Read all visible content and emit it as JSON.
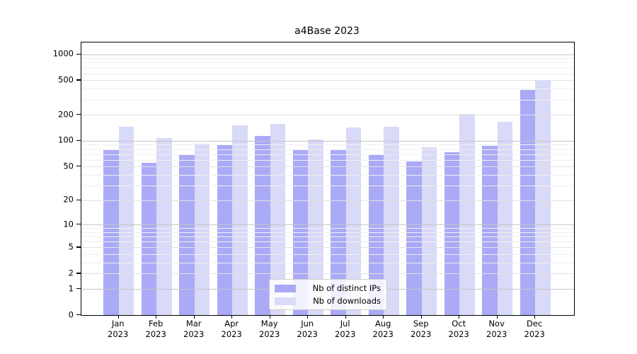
{
  "chart_data": {
    "type": "bar",
    "title": "a4Base 2023",
    "categories": [
      "Jan 2023",
      "Feb 2023",
      "Mar 2023",
      "Apr 2023",
      "May 2023",
      "Jun 2023",
      "Jul 2023",
      "Aug 2023",
      "Sep 2023",
      "Oct 2023",
      "Nov 2023",
      "Dec 2023"
    ],
    "series": [
      {
        "name": "Nb of distinct IPs",
        "color": "#a9a9f7",
        "values": [
          80,
          55,
          69,
          91,
          115,
          78,
          78,
          68,
          57,
          73,
          88,
          390
        ]
      },
      {
        "name": "Nb of downloads",
        "color": "#dbdbf8",
        "values": [
          147,
          108,
          92,
          152,
          157,
          104,
          144,
          145,
          84,
          205,
          166,
          500
        ]
      }
    ],
    "xlabel": "",
    "ylabel": "",
    "yscale": "symlog",
    "ylim": [
      0,
      1360
    ],
    "yticks": [
      1000,
      500,
      200,
      100,
      50,
      20,
      10,
      5,
      2,
      1,
      0
    ],
    "grid": true,
    "legend_position": "lower center",
    "axis_color": "#000000",
    "major_grid_color": "#c6c6c6",
    "minor_grid_color": "#f0f0f0",
    "background_color": "#ffffff"
  }
}
